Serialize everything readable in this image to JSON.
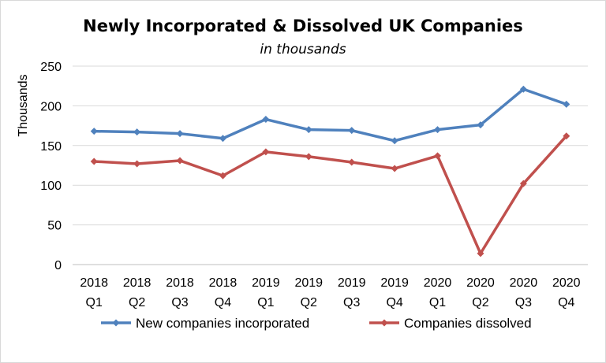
{
  "chart_data": {
    "type": "line",
    "title": "Newly Incorporated & Dissolved UK Companies",
    "subtitle": "in thousands",
    "ylabel": "Thousands",
    "xlabel": "",
    "ylim": [
      0,
      250
    ],
    "yticks": [
      0,
      50,
      100,
      150,
      200,
      250
    ],
    "grid": true,
    "legend_position": "bottom",
    "categories": [
      {
        "year": "2018",
        "quarter": "Q1"
      },
      {
        "year": "2018",
        "quarter": "Q2"
      },
      {
        "year": "2018",
        "quarter": "Q3"
      },
      {
        "year": "2018",
        "quarter": "Q4"
      },
      {
        "year": "2019",
        "quarter": "Q1"
      },
      {
        "year": "2019",
        "quarter": "Q2"
      },
      {
        "year": "2019",
        "quarter": "Q3"
      },
      {
        "year": "2019",
        "quarter": "Q4"
      },
      {
        "year": "2020",
        "quarter": "Q1"
      },
      {
        "year": "2020",
        "quarter": "Q2"
      },
      {
        "year": "2020",
        "quarter": "Q3"
      },
      {
        "year": "2020",
        "quarter": "Q4"
      }
    ],
    "series": [
      {
        "name": "New companies incorporated",
        "color": "#4f81bd",
        "values": [
          168,
          167,
          165,
          159,
          183,
          170,
          169,
          156,
          170,
          176,
          221,
          202
        ]
      },
      {
        "name": "Companies dissolved",
        "color": "#c0504d",
        "values": [
          130,
          127,
          131,
          112,
          142,
          136,
          129,
          121,
          137,
          14,
          102,
          162
        ]
      }
    ]
  }
}
